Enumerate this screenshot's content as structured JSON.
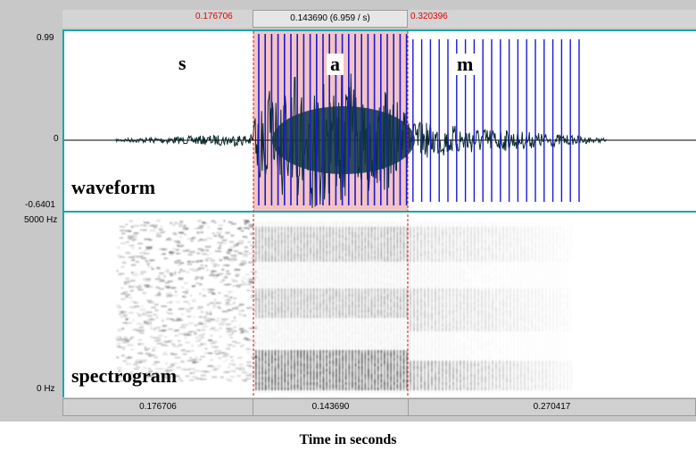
{
  "selection": {
    "start_time": "0.176706",
    "duration_label": "0.143690 (6.959 / s)",
    "end_time": "0.320396"
  },
  "waveform": {
    "y_max": "0.99",
    "y_zero": "0",
    "y_min": "-0.6401",
    "label": "waveform"
  },
  "spectrogram": {
    "freq_max": "5000 Hz",
    "freq_min": "0 Hz",
    "label": "spectrogram"
  },
  "phonemes": [
    {
      "symbol": "s"
    },
    {
      "symbol": "a"
    },
    {
      "symbol": "m"
    }
  ],
  "segments": {
    "left": "0.176706",
    "middle": "0.143690",
    "right": "0.270417"
  },
  "axis_caption": "Time in seconds",
  "colors": {
    "selection_fill": "#f4c4c4",
    "selection_edge": "#e01010",
    "pitch_marks": "#1a1ad8",
    "panel_border": "#1aa7ab",
    "time_red": "#e00000"
  }
}
